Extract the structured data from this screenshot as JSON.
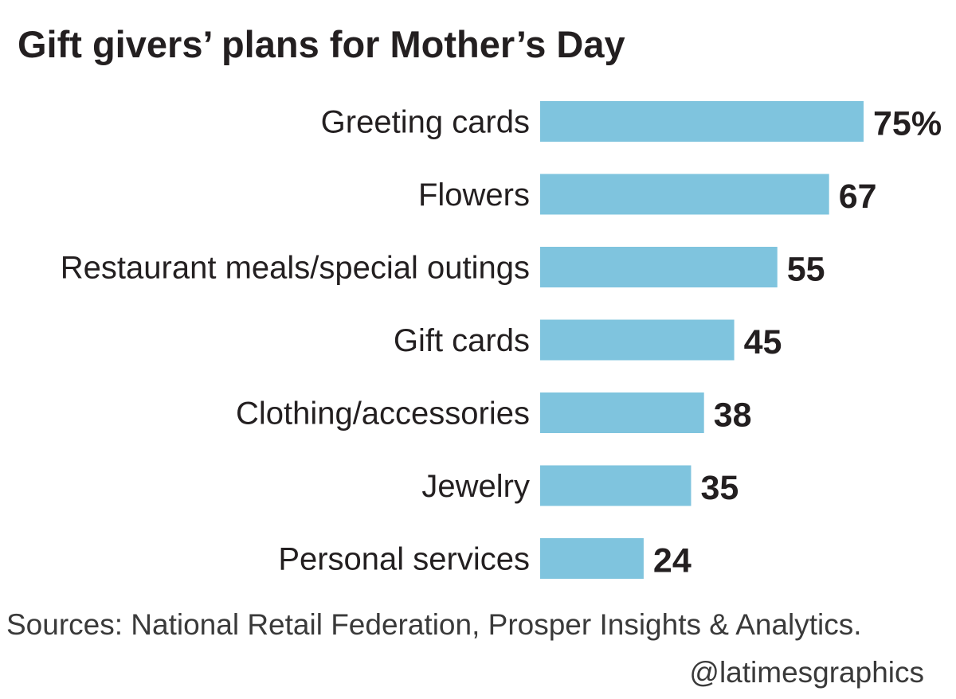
{
  "chart_data": {
    "type": "bar",
    "orientation": "horizontal",
    "title": "Gift givers’ plans for Mother’s Day",
    "categories": [
      "Greeting cards",
      "Flowers",
      "Restaurant meals/special outings",
      "Gift cards",
      "Clothing/accessories",
      "Jewelry",
      "Personal services"
    ],
    "values": [
      75,
      67,
      55,
      45,
      38,
      35,
      24
    ],
    "value_labels": [
      "75%",
      "67",
      "55",
      "45",
      "38",
      "35",
      "24"
    ],
    "unit": "%",
    "xlim": [
      0,
      75
    ],
    "grid": false,
    "bar_color": "#7fc4de"
  },
  "footer": {
    "source": "Sources: National Retail Federation, Prosper Insights & Analytics.",
    "credit": "@latimesgraphics"
  }
}
